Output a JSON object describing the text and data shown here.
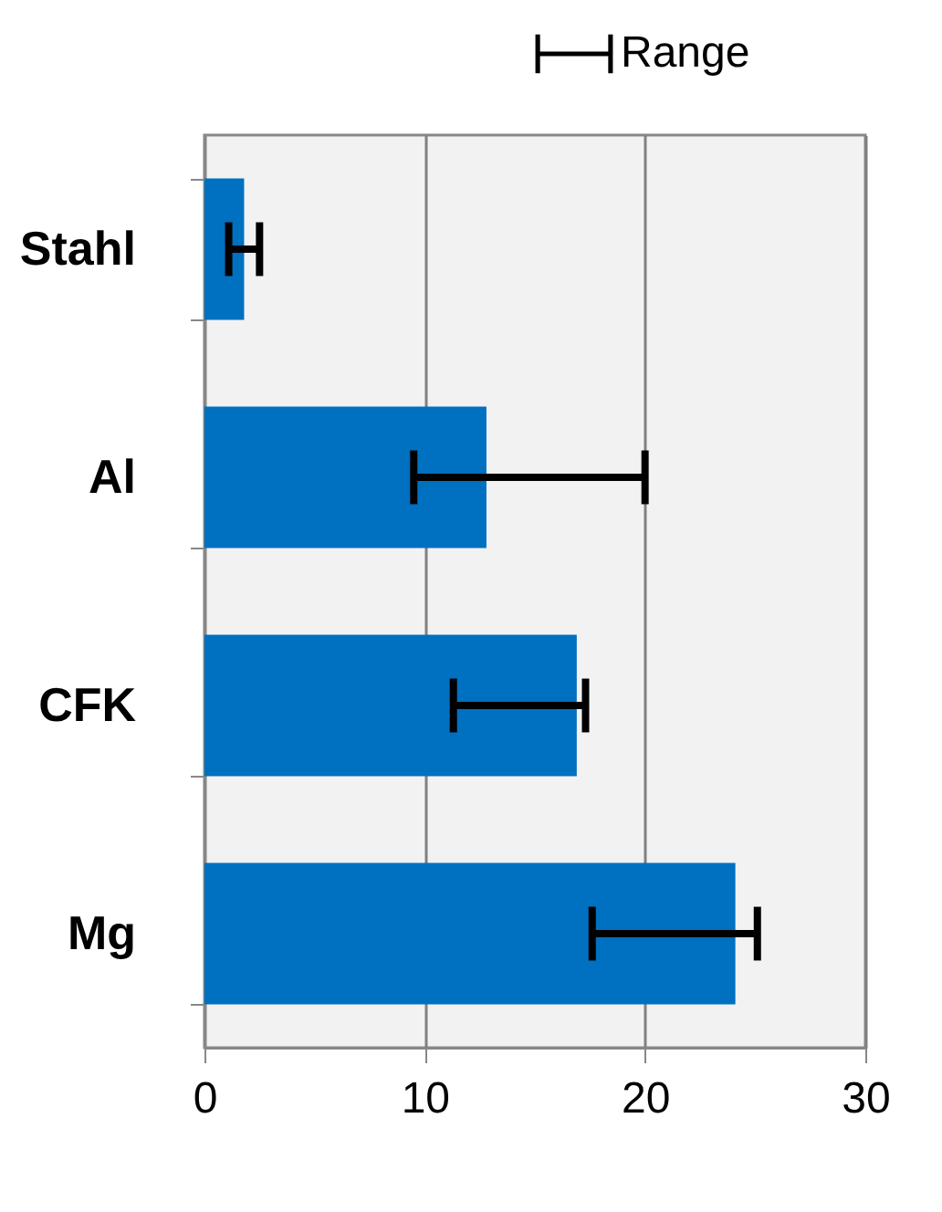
{
  "chart_data": {
    "type": "bar",
    "orientation": "horizontal",
    "categories": [
      "Stahl",
      "Al",
      "CFK",
      "Mg"
    ],
    "values": [
      1.8,
      12.8,
      16.9,
      24.1
    ],
    "color": "#0070c0",
    "errors": [
      [
        1.1,
        2.5
      ],
      [
        9.5,
        20
      ],
      [
        11.3,
        17.3
      ],
      [
        17.6,
        25.1
      ]
    ],
    "annotations": [
      "Range"
    ],
    "xlim": [
      0,
      30
    ],
    "xticks": [
      0,
      10,
      20,
      30
    ],
    "grid": "x"
  }
}
